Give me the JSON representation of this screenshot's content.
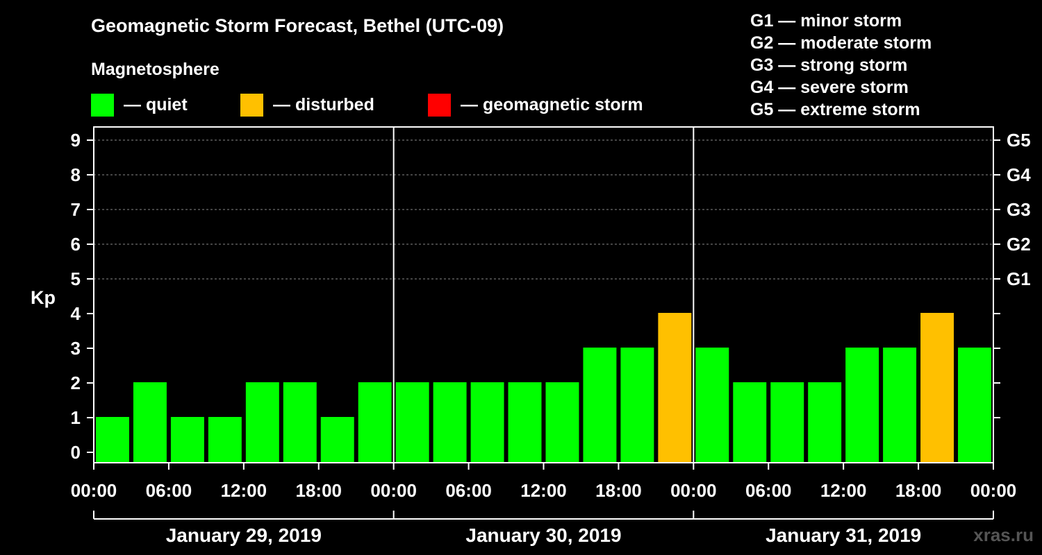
{
  "header": {
    "title": "Geomagnetic Storm Forecast, Bethel (UTC-09)",
    "subtitle": "Magnetosphere"
  },
  "legend": [
    {
      "label": "— quiet",
      "color": "#00ff00"
    },
    {
      "label": "— disturbed",
      "color": "#ffc000"
    },
    {
      "label": "— geomagnetic storm",
      "color": "#ff0000"
    }
  ],
  "storm_scale": [
    "G1 — minor storm",
    "G2 — moderate storm",
    "G3 — strong storm",
    "G4 — severe storm",
    "G5 — extreme storm"
  ],
  "watermark": "xras.ru",
  "colors": {
    "quiet": "#00ff00",
    "disturbed": "#ffc000",
    "storm": "#ff0000"
  },
  "chart_data": {
    "type": "bar",
    "title": "Geomagnetic Storm Forecast, Bethel (UTC-09)",
    "ylabel": "Kp",
    "xlabel": "",
    "ylim": [
      0,
      9
    ],
    "yticks": [
      0,
      1,
      2,
      3,
      4,
      5,
      6,
      7,
      8,
      9
    ],
    "right_ticks": [
      {
        "kp": 5,
        "label": "G1"
      },
      {
        "kp": 6,
        "label": "G2"
      },
      {
        "kp": 7,
        "label": "G3"
      },
      {
        "kp": 8,
        "label": "G4"
      },
      {
        "kp": 9,
        "label": "G5"
      }
    ],
    "x_tick_labels": [
      "00:00",
      "06:00",
      "12:00",
      "18:00",
      "00:00",
      "06:00",
      "12:00",
      "18:00",
      "00:00",
      "06:00",
      "12:00",
      "18:00",
      "00:00"
    ],
    "days": [
      "January 29, 2019",
      "January 30, 2019",
      "January 31, 2019"
    ],
    "values": [
      1,
      2,
      1,
      1,
      2,
      2,
      1,
      2,
      2,
      2,
      2,
      2,
      2,
      3,
      3,
      4,
      3,
      2,
      2,
      2,
      3,
      3,
      4,
      3
    ],
    "status": [
      "quiet",
      "quiet",
      "quiet",
      "quiet",
      "quiet",
      "quiet",
      "quiet",
      "quiet",
      "quiet",
      "quiet",
      "quiet",
      "quiet",
      "quiet",
      "quiet",
      "quiet",
      "disturbed",
      "quiet",
      "quiet",
      "quiet",
      "quiet",
      "quiet",
      "quiet",
      "disturbed",
      "quiet"
    ],
    "grid": true
  }
}
